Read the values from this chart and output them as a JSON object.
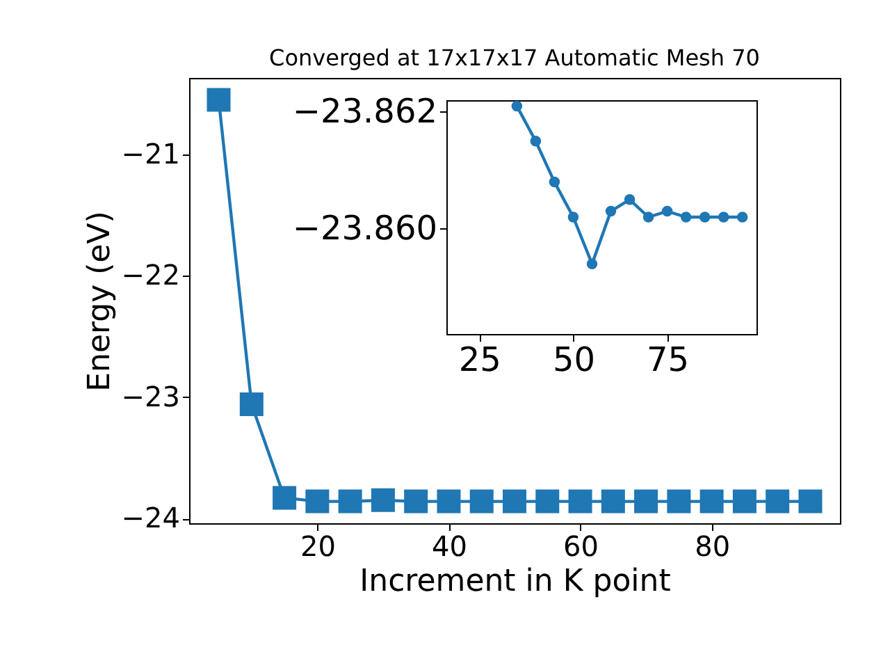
{
  "chart_data": [
    {
      "type": "line",
      "title": "Converged at 17x17x17 Automatic Mesh 70",
      "xlabel": "Increment in K point",
      "ylabel": "Energy (eV)",
      "marker": "square",
      "grid": false,
      "x": [
        5,
        10,
        15,
        20,
        25,
        30,
        35,
        40,
        45,
        50,
        55,
        60,
        65,
        70,
        75,
        80,
        85,
        90,
        95
      ],
      "series": [
        {
          "color": "#1f77b4",
          "values": [
            -20.55,
            -23.06,
            -23.83,
            -23.86,
            -23.86,
            -23.85,
            -23.86,
            -23.86,
            -23.86,
            -23.86,
            -23.86,
            -23.86,
            -23.86,
            -23.86,
            -23.86,
            -23.86,
            -23.86,
            -23.86,
            -23.86
          ]
        }
      ],
      "xlim": [
        0.5,
        99.5
      ],
      "xticks": [
        20,
        40,
        60,
        80
      ],
      "ylim": [
        -24.04,
        -20.37
      ],
      "yticks": [
        -24,
        -23,
        -22,
        -21
      ]
    },
    {
      "type": "line",
      "marker": "circle",
      "grid": false,
      "x": [
        35,
        40,
        45,
        50,
        55,
        60,
        65,
        70,
        75,
        80,
        85,
        90,
        95
      ],
      "series": [
        {
          "color": "#1f77b4",
          "values": [
            -23.8621,
            -23.8615,
            -23.8608,
            -23.8602,
            -23.8594,
            -23.8603,
            -23.8605,
            -23.8602,
            -23.8603,
            -23.8602,
            -23.8602,
            -23.8602,
            -23.8602
          ]
        }
      ],
      "xlim": [
        16.25,
        98.75
      ],
      "xticks": [
        25,
        50,
        75
      ],
      "ylim": [
        -23.8582,
        -23.8622
      ],
      "yticks": [
        {
          "value": -23.862,
          "label": "−23.862"
        },
        {
          "value": -23.86,
          "label": "−23.860"
        }
      ]
    }
  ]
}
